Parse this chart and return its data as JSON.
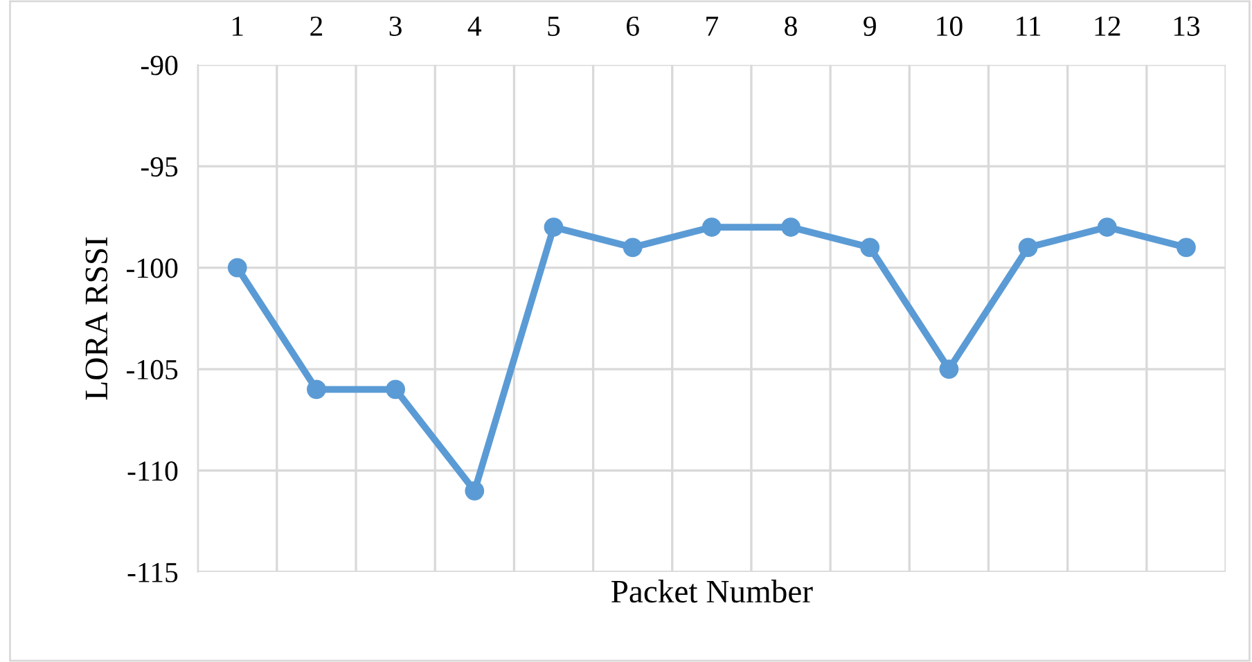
{
  "chart_data": {
    "type": "line",
    "xlabel": "Packet Number",
    "ylabel": "LORA RSSI",
    "categories": [
      "1",
      "2",
      "3",
      "4",
      "5",
      "6",
      "7",
      "8",
      "9",
      "10",
      "11",
      "12",
      "13"
    ],
    "series": [
      {
        "color": "#5b9bd5",
        "values": [
          -100,
          -106,
          -106,
          -111,
          -98,
          -99,
          -98,
          -98,
          -99,
          -105,
          -99,
          -98,
          -99
        ]
      }
    ],
    "ylim": [
      -115,
      -90
    ],
    "yticks": [
      -115,
      -110,
      -105,
      -100,
      -95,
      -90
    ],
    "grid": true,
    "marker": "circle",
    "line_style": "solid",
    "legend": false
  }
}
